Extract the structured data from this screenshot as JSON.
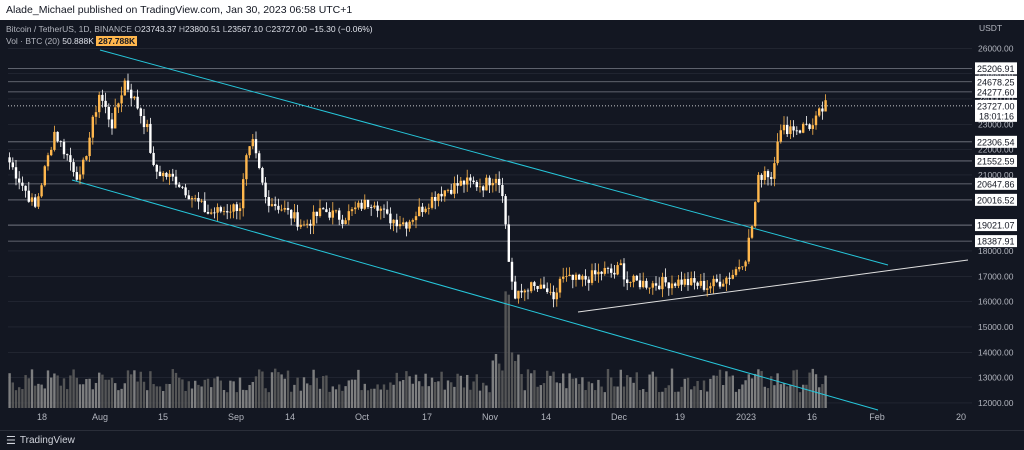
{
  "topbar": {
    "published_text": "Alade_Michael published on TradingView.com, Jan 30, 2023 06:58 UTC+1"
  },
  "header": {
    "symbol": "Bitcoin / TetherUS, 1D, BINANCE",
    "ohlc": [
      {
        "label": "O",
        "value": "23743.37"
      },
      {
        "label": "H",
        "value": "23800.51"
      },
      {
        "label": "L",
        "value": "23567.10"
      },
      {
        "label": "C",
        "value": "23727.00"
      }
    ],
    "change": "−15.30 (−0.06%)",
    "vol_label": "Vol · BTC (20)",
    "vol_ma": "50.888K",
    "vol_value": "287.788K"
  },
  "price_axis_title": "USDT",
  "footer": {
    "brand": "TradingView",
    "brand_icon": "tradingview-logo-icon"
  },
  "colors": {
    "background": "#131722",
    "bull": "#ffb74d",
    "bear": "#ffffff",
    "channel": "#26c6da",
    "support": "#e0e0e0",
    "grid": "#2a2e39",
    "label_bg": "#ffffff",
    "label_text": "#131722"
  },
  "chart_data": {
    "type": "candlestick",
    "ylim": [
      11800,
      26800
    ],
    "y_ticks": [
      "26000.00",
      "25000.00",
      "24000.00",
      "23000.00",
      "22000.00",
      "21000.00",
      "20000.00",
      "19000.00",
      "18000.00",
      "17000.00",
      "16000.00",
      "15000.00",
      "14000.00",
      "13000.00",
      "12000.00"
    ],
    "x_ticks": [
      "18",
      "Aug",
      "15",
      "Sep",
      "14",
      "Oct",
      "17",
      "Nov",
      "14",
      "Dec",
      "19",
      "2023",
      "16",
      "Feb",
      "20"
    ],
    "level_lines": [
      "25206.91",
      "24678.25",
      "24277.60",
      "22306.54",
      "21552.59",
      "20647.86",
      "20016.52",
      "19021.07",
      "18387.91"
    ],
    "current_price": "23727.00",
    "countdown": "18:01:16",
    "ohlc_pivots": [
      [
        0,
        21500
      ],
      [
        8,
        19700
      ],
      [
        14,
        22700
      ],
      [
        22,
        20800
      ],
      [
        28,
        24200
      ],
      [
        32,
        23000
      ],
      [
        36,
        24700
      ],
      [
        40,
        23700
      ],
      [
        43,
        22800
      ],
      [
        45,
        21200
      ],
      [
        52,
        20800
      ],
      [
        58,
        20000
      ],
      [
        62,
        19500
      ],
      [
        67,
        19600
      ],
      [
        72,
        19800
      ],
      [
        74,
        21600
      ],
      [
        76,
        22200
      ],
      [
        80,
        20100
      ],
      [
        86,
        19600
      ],
      [
        92,
        19000
      ],
      [
        98,
        19600
      ],
      [
        104,
        19300
      ],
      [
        110,
        19800
      ],
      [
        114,
        20000
      ],
      [
        118,
        19300
      ],
      [
        124,
        19100
      ],
      [
        128,
        19600
      ],
      [
        134,
        20300
      ],
      [
        142,
        20700
      ],
      [
        148,
        20600
      ],
      [
        152,
        21000
      ],
      [
        154,
        20400
      ],
      [
        156,
        17600
      ],
      [
        158,
        16100
      ],
      [
        162,
        16600
      ],
      [
        168,
        16400
      ],
      [
        170,
        15900
      ],
      [
        172,
        16900
      ],
      [
        178,
        16800
      ],
      [
        182,
        17000
      ],
      [
        186,
        17200
      ],
      [
        189,
        17100
      ],
      [
        191,
        17400
      ],
      [
        193,
        16800
      ],
      [
        200,
        16700
      ],
      [
        210,
        16800
      ],
      [
        218,
        16600
      ],
      [
        222,
        16800
      ],
      [
        226,
        17100
      ],
      [
        230,
        17800
      ],
      [
        232,
        19000
      ],
      [
        234,
        20800
      ],
      [
        236,
        21200
      ],
      [
        238,
        20900
      ],
      [
        240,
        22500
      ],
      [
        242,
        22800
      ],
      [
        244,
        22900
      ],
      [
        247,
        22800
      ],
      [
        249,
        23000
      ],
      [
        251,
        22900
      ],
      [
        253,
        23400
      ],
      [
        255,
        23727
      ]
    ],
    "volume_axis_max": 190000
  }
}
